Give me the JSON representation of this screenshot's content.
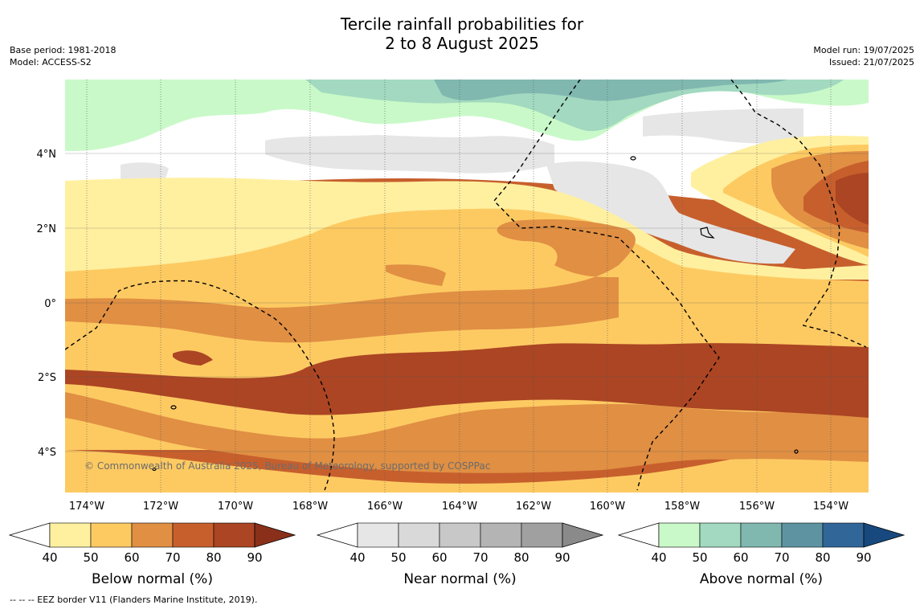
{
  "header": {
    "title_line1": "Tercile rainfall probabilities for",
    "title_line2": "2 to 8 August 2025",
    "base_period": "Base period: 1981-2018",
    "model": "Model: ACCESS-S2",
    "model_run": "Model run: 19/07/2025",
    "issued": "Issued: 21/07/2025"
  },
  "map": {
    "lon_ticks": [
      "174°W",
      "172°W",
      "170°W",
      "168°W",
      "166°W",
      "164°W",
      "162°W",
      "160°W",
      "158°W",
      "156°W",
      "154°W"
    ],
    "lat_ticks": [
      "4°N",
      "2°N",
      "0°",
      "2°S",
      "4°S"
    ],
    "copyright": "© Commonwealth of Australia 2025, Bureau of Meteorology, supported by COSPPac"
  },
  "colorbars": [
    {
      "title": "Below normal (%)",
      "ticks": [
        "40",
        "50",
        "60",
        "70",
        "80",
        "90"
      ],
      "colors": [
        "#fff0a0",
        "#fdca62",
        "#e08f43",
        "#c75f2d",
        "#ab4523",
        "#8a301a"
      ]
    },
    {
      "title": "Near normal (%)",
      "ticks": [
        "40",
        "50",
        "60",
        "70",
        "80",
        "90"
      ],
      "colors": [
        "#e6e6e6",
        "#d9d9d9",
        "#c8c8c8",
        "#b4b4b4",
        "#a0a0a0",
        "#8a8a8a"
      ]
    },
    {
      "title": "Above normal (%)",
      "ticks": [
        "40",
        "50",
        "60",
        "70",
        "80",
        "90"
      ],
      "colors": [
        "#c9f9c8",
        "#a2d9c0",
        "#80b8b0",
        "#5e94a2",
        "#316699",
        "#17497e"
      ]
    }
  ],
  "footer": "--  --  -- EEZ border V11 (Flanders Marine Institute, 2019)."
}
